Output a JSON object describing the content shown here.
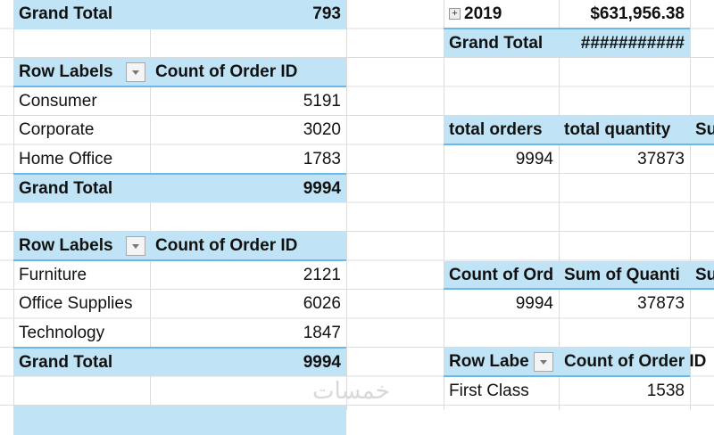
{
  "left": {
    "top_total": {
      "label": "Grand Total",
      "value": "793"
    },
    "pivot_segment": {
      "header": {
        "row_labels": "Row Labels",
        "value_col": "Count of Order ID"
      },
      "rows": [
        {
          "label": "Consumer",
          "value": "5191"
        },
        {
          "label": "Corporate",
          "value": "3020"
        },
        {
          "label": "Home Office",
          "value": "1783"
        }
      ],
      "total": {
        "label": "Grand Total",
        "value": "9994"
      }
    },
    "pivot_category": {
      "header": {
        "row_labels": "Row Labels",
        "value_col": "Count of Order ID"
      },
      "rows": [
        {
          "label": "Furniture",
          "value": "2121"
        },
        {
          "label": "Office Supplies",
          "value": "6026"
        },
        {
          "label": "Technology",
          "value": "1847"
        }
      ],
      "total": {
        "label": "Grand Total",
        "value": "9994"
      }
    }
  },
  "right": {
    "year_pivot": {
      "year": "2019",
      "year_value": "$631,956.38",
      "total_label": "Grand Total",
      "total_value": "###########"
    },
    "summary1": {
      "headers": [
        "total orders",
        "total quantity",
        "Su"
      ],
      "values": [
        "9994",
        "37873"
      ]
    },
    "summary2": {
      "headers": [
        "Count of Ord",
        "Sum of Quanti",
        "Su"
      ],
      "values": [
        "9994",
        "37873"
      ]
    },
    "pivot_ship": {
      "header": {
        "row_labels": "Row Labe",
        "value_col": "Count of Order ID"
      },
      "rows": [
        {
          "label": "First Class",
          "value": "1538"
        }
      ]
    }
  },
  "watermark": "خمسات",
  "colors": {
    "header_fill": "#c0e4f5",
    "header_line": "#6cb8e6",
    "gridline": "#dcdcdc"
  }
}
